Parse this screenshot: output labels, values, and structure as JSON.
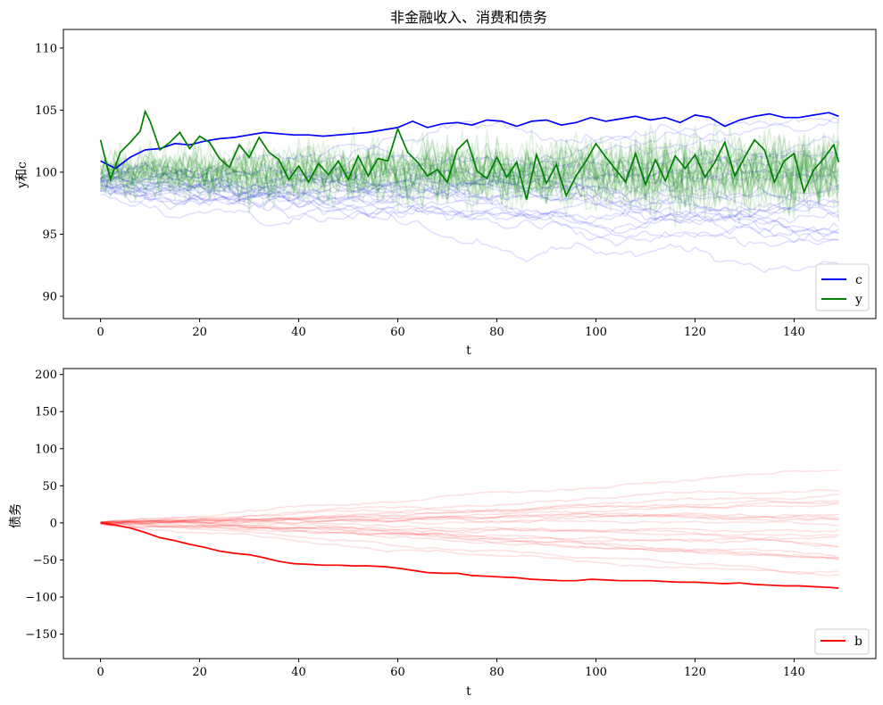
{
  "chart_data": [
    {
      "type": "line",
      "title": "非金融收入、消费和债务",
      "xlabel": "t",
      "ylabel": "y和c",
      "xlim": [
        -7.5,
        156.5
      ],
      "ylim": [
        88.2,
        111.5
      ],
      "xticks": [
        0,
        20,
        40,
        60,
        80,
        100,
        120,
        140
      ],
      "yticks": [
        90,
        95,
        100,
        105,
        110
      ],
      "legend_position": "lower-right",
      "legend": [
        {
          "label": "c",
          "color": "#0000ff"
        },
        {
          "label": "y",
          "color": "#008000"
        }
      ],
      "series": [
        {
          "name": "c",
          "color": "#0000ff",
          "x": [
            0,
            3,
            6,
            9,
            12,
            15,
            18,
            21,
            24,
            27,
            30,
            33,
            36,
            39,
            42,
            45,
            48,
            51,
            54,
            57,
            60,
            63,
            66,
            69,
            72,
            75,
            78,
            81,
            84,
            87,
            90,
            93,
            96,
            99,
            102,
            105,
            108,
            111,
            114,
            117,
            120,
            123,
            126,
            129,
            132,
            135,
            138,
            141,
            144,
            147,
            149
          ],
          "y": [
            100.9,
            100.3,
            101.2,
            101.8,
            101.9,
            102.3,
            102.2,
            102.5,
            102.7,
            102.8,
            103.0,
            103.2,
            103.1,
            103.0,
            103.0,
            102.9,
            103.0,
            103.1,
            103.2,
            103.4,
            103.6,
            104.1,
            103.6,
            103.9,
            104.0,
            103.8,
            104.2,
            104.1,
            103.7,
            104.1,
            104.2,
            103.8,
            104.0,
            104.4,
            104.1,
            104.3,
            104.5,
            104.2,
            104.4,
            104.0,
            104.6,
            104.4,
            103.7,
            104.2,
            104.5,
            104.7,
            104.4,
            104.4,
            104.6,
            104.8,
            104.5
          ]
        },
        {
          "name": "y",
          "color": "#008000",
          "x": [
            0,
            2,
            4,
            6,
            8,
            9,
            10,
            12,
            14,
            16,
            18,
            20,
            22,
            24,
            26,
            28,
            30,
            32,
            34,
            36,
            38,
            40,
            42,
            44,
            46,
            48,
            50,
            52,
            54,
            56,
            58,
            60,
            62,
            64,
            66,
            68,
            70,
            72,
            74,
            76,
            78,
            80,
            82,
            84,
            86,
            88,
            90,
            92,
            94,
            96,
            98,
            100,
            102,
            104,
            106,
            108,
            110,
            112,
            114,
            116,
            118,
            120,
            122,
            124,
            126,
            128,
            130,
            132,
            134,
            136,
            138,
            140,
            142,
            144,
            146,
            148,
            149
          ],
          "y": [
            102.6,
            99.4,
            101.6,
            102.4,
            103.3,
            104.9,
            104.1,
            101.8,
            102.4,
            103.2,
            101.9,
            102.9,
            102.4,
            101.1,
            100.4,
            102.2,
            101.2,
            102.8,
            101.6,
            101.0,
            99.4,
            100.5,
            99.2,
            100.7,
            99.8,
            100.9,
            99.4,
            101.3,
            99.7,
            101.1,
            100.9,
            103.5,
            101.6,
            100.8,
            99.7,
            100.2,
            99.2,
            101.8,
            102.6,
            100.1,
            99.5,
            101.2,
            99.6,
            100.8,
            97.8,
            101.4,
            99.1,
            100.6,
            98.1,
            99.7,
            100.9,
            102.3,
            101.2,
            100.2,
            99.2,
            101.5,
            99.0,
            101.0,
            99.3,
            101.3,
            100.3,
            101.4,
            99.6,
            100.8,
            102.4,
            99.7,
            101.2,
            102.6,
            101.8,
            99.2,
            100.9,
            101.5,
            98.4,
            100.2,
            101.1,
            102.2,
            100.8
          ]
        }
      ]
    },
    {
      "type": "line",
      "xlabel": "t",
      "ylabel": "债务",
      "xlim": [
        -7.5,
        156.5
      ],
      "ylim": [
        -183,
        208
      ],
      "xticks": [
        0,
        20,
        40,
        60,
        80,
        100,
        120,
        140
      ],
      "yticks": [
        -150,
        -100,
        -50,
        0,
        50,
        100,
        150,
        200
      ],
      "legend_position": "lower-right",
      "legend": [
        {
          "label": "b",
          "color": "#ff0000"
        }
      ],
      "series": [
        {
          "name": "b",
          "color": "#ff0000",
          "x": [
            0,
            3,
            6,
            9,
            12,
            15,
            18,
            21,
            24,
            27,
            30,
            33,
            36,
            39,
            42,
            45,
            48,
            51,
            54,
            57,
            60,
            63,
            66,
            69,
            72,
            75,
            78,
            81,
            84,
            87,
            90,
            93,
            96,
            99,
            102,
            105,
            108,
            111,
            114,
            117,
            120,
            123,
            126,
            129,
            132,
            135,
            138,
            141,
            144,
            147,
            149
          ],
          "y": [
            0,
            -3,
            -7,
            -13,
            -20,
            -24,
            -29,
            -33,
            -38,
            -41,
            -43,
            -47,
            -52,
            -55,
            -56,
            -57,
            -57,
            -58,
            -58,
            -59,
            -61,
            -64,
            -67,
            -68,
            -68,
            -71,
            -72,
            -73,
            -74,
            -76,
            -77,
            -78,
            -78,
            -76,
            -77,
            -78,
            -78,
            -78,
            -79,
            -80,
            -80,
            -81,
            -82,
            -81,
            -83,
            -84,
            -85,
            -85,
            -86,
            -87,
            -88
          ]
        }
      ]
    }
  ]
}
